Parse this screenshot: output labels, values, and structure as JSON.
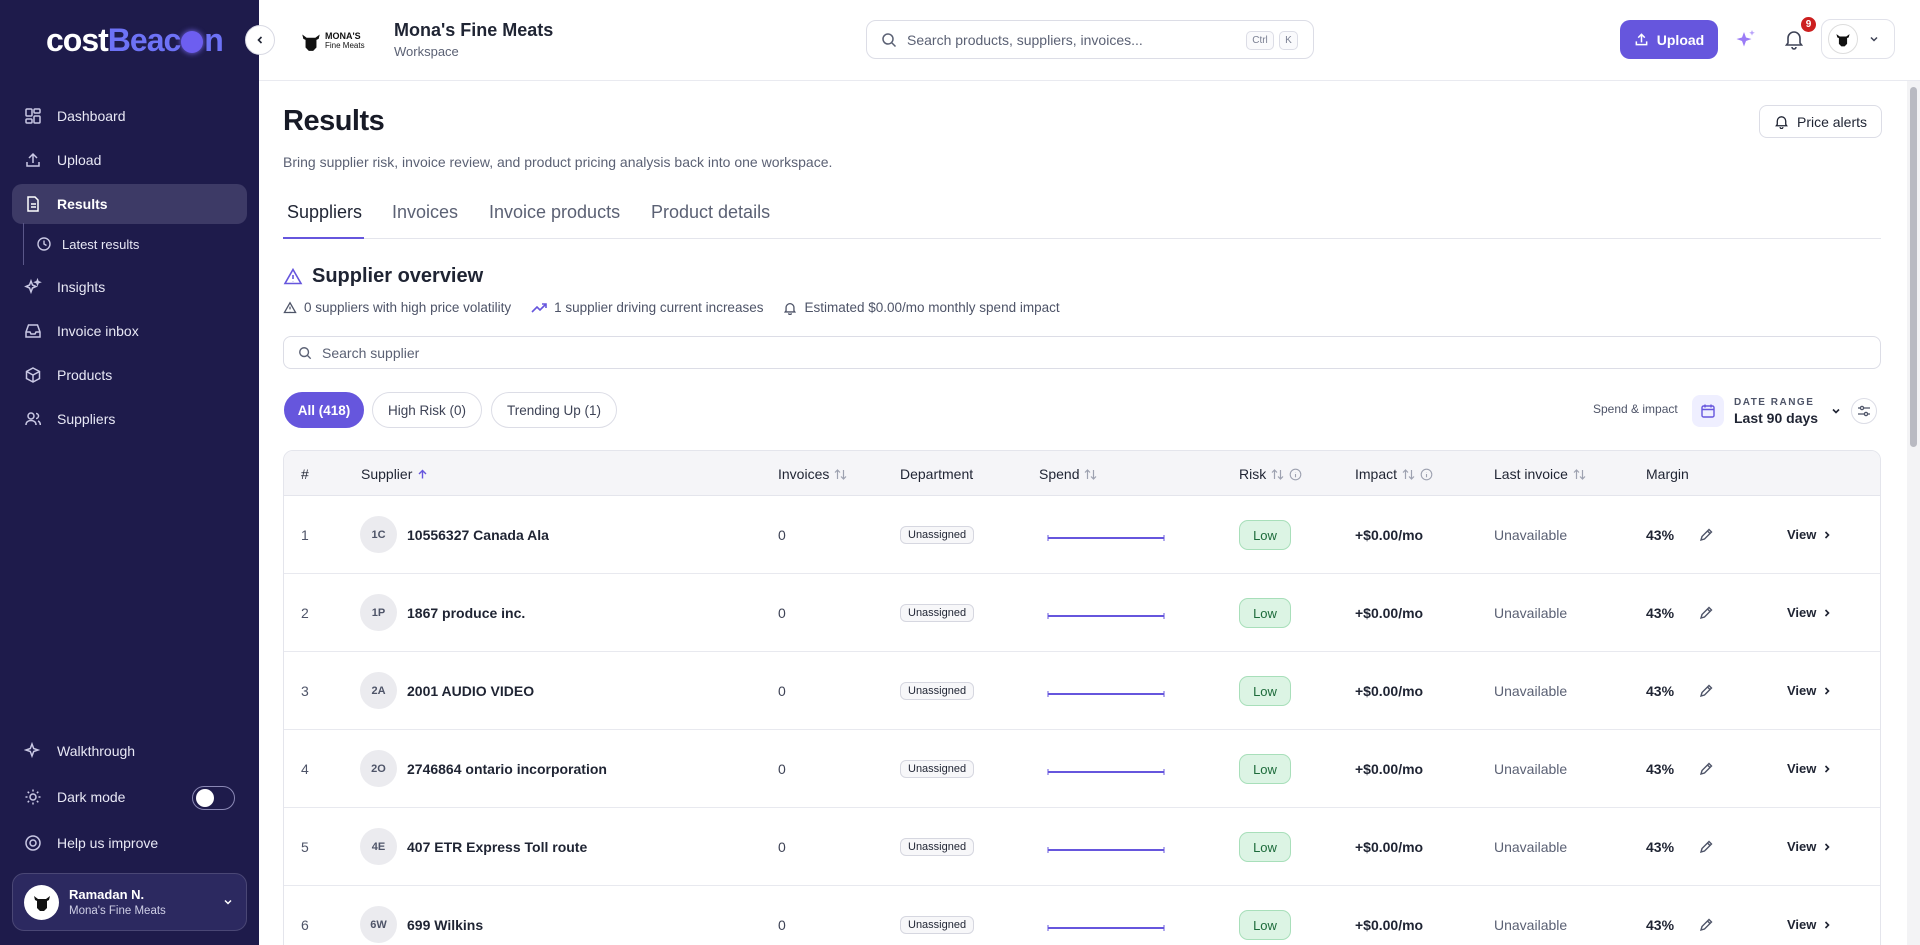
{
  "brand": {
    "logo_part1": "cost",
    "logo_part2": "Be",
    "logo_part3": "c",
    "logo_part4": "n"
  },
  "sidebar": {
    "items": [
      {
        "label": "Dashboard",
        "icon": "dashboard-icon"
      },
      {
        "label": "Upload",
        "icon": "upload-icon"
      },
      {
        "label": "Results",
        "icon": "file-icon"
      },
      {
        "label": "Insights",
        "icon": "sparkle-icon"
      },
      {
        "label": "Invoice inbox",
        "icon": "inbox-icon"
      },
      {
        "label": "Products",
        "icon": "box-icon"
      },
      {
        "label": "Suppliers",
        "icon": "users-icon"
      }
    ],
    "sub_item": {
      "label": "Latest results",
      "icon": "clock-icon"
    },
    "walkthrough": "Walkthrough",
    "dark_mode": "Dark mode",
    "help": "Help us improve",
    "user": {
      "name": "Ramadan N.",
      "org": "Mona's Fine Meats"
    }
  },
  "header": {
    "workspace_name": "Mona's Fine Meats",
    "workspace_sub": "Workspace",
    "ws_logo_line1": "MONA'S",
    "ws_logo_line2": "Fine Meats",
    "search_placeholder": "Search products, suppliers, invoices...",
    "kbd_ctrl": "Ctrl",
    "kbd_k": "K",
    "upload_label": "Upload",
    "notification_count": "9",
    "profile_logo": "MONA'S"
  },
  "page": {
    "title": "Results",
    "description": "Bring supplier risk, invoice review, and product pricing analysis back into one workspace.",
    "price_alerts": "Price alerts",
    "tabs": [
      "Suppliers",
      "Invoices",
      "Invoice products",
      "Product details"
    ],
    "overview_title": "Supplier overview",
    "stats": [
      "0 suppliers with high price volatility",
      "1 supplier driving current increases",
      "Estimated $0.00/mo monthly spend impact"
    ],
    "supplier_search_placeholder": "Search supplier",
    "filters": [
      "All (418)",
      "High Risk (0)",
      "Trending Up (1)"
    ],
    "spend_impact_label": "Spend & impact",
    "date_range_label": "DATE RANGE",
    "date_range_value": "Last 90 days"
  },
  "table": {
    "headers": [
      "#",
      "Supplier",
      "Invoices",
      "Department",
      "Spend",
      "Risk",
      "Impact",
      "Last invoice",
      "Margin"
    ],
    "rows": [
      {
        "num": "1",
        "initials": "1C",
        "name": "10556327 Canada Ala",
        "invoices": "0",
        "department": "Unassigned",
        "risk": "Low",
        "impact": "+$0.00/mo",
        "last_invoice": "Unavailable",
        "margin": "43%",
        "view": "View"
      },
      {
        "num": "2",
        "initials": "1P",
        "name": "1867 produce inc.",
        "invoices": "0",
        "department": "Unassigned",
        "risk": "Low",
        "impact": "+$0.00/mo",
        "last_invoice": "Unavailable",
        "margin": "43%",
        "view": "View"
      },
      {
        "num": "3",
        "initials": "2A",
        "name": "2001 AUDIO VIDEO",
        "invoices": "0",
        "department": "Unassigned",
        "risk": "Low",
        "impact": "+$0.00/mo",
        "last_invoice": "Unavailable",
        "margin": "43%",
        "view": "View"
      },
      {
        "num": "4",
        "initials": "2O",
        "name": "2746864 ontario incorporation",
        "invoices": "0",
        "department": "Unassigned",
        "risk": "Low",
        "impact": "+$0.00/mo",
        "last_invoice": "Unavailable",
        "margin": "43%",
        "view": "View"
      },
      {
        "num": "5",
        "initials": "4E",
        "name": "407 ETR Express Toll route",
        "invoices": "0",
        "department": "Unassigned",
        "risk": "Low",
        "impact": "+$0.00/mo",
        "last_invoice": "Unavailable",
        "margin": "43%",
        "view": "View"
      },
      {
        "num": "6",
        "initials": "6W",
        "name": "699 Wilkins",
        "invoices": "0",
        "department": "Unassigned",
        "risk": "Low",
        "impact": "+$0.00/mo",
        "last_invoice": "Unavailable",
        "margin": "43%",
        "view": "View"
      }
    ]
  },
  "colors": {
    "sidebar_bg": "#1e1b4b",
    "accent": "#6656dd",
    "risk_low_bg": "#dcf4e4",
    "badge_red": "#cc1f1f"
  }
}
